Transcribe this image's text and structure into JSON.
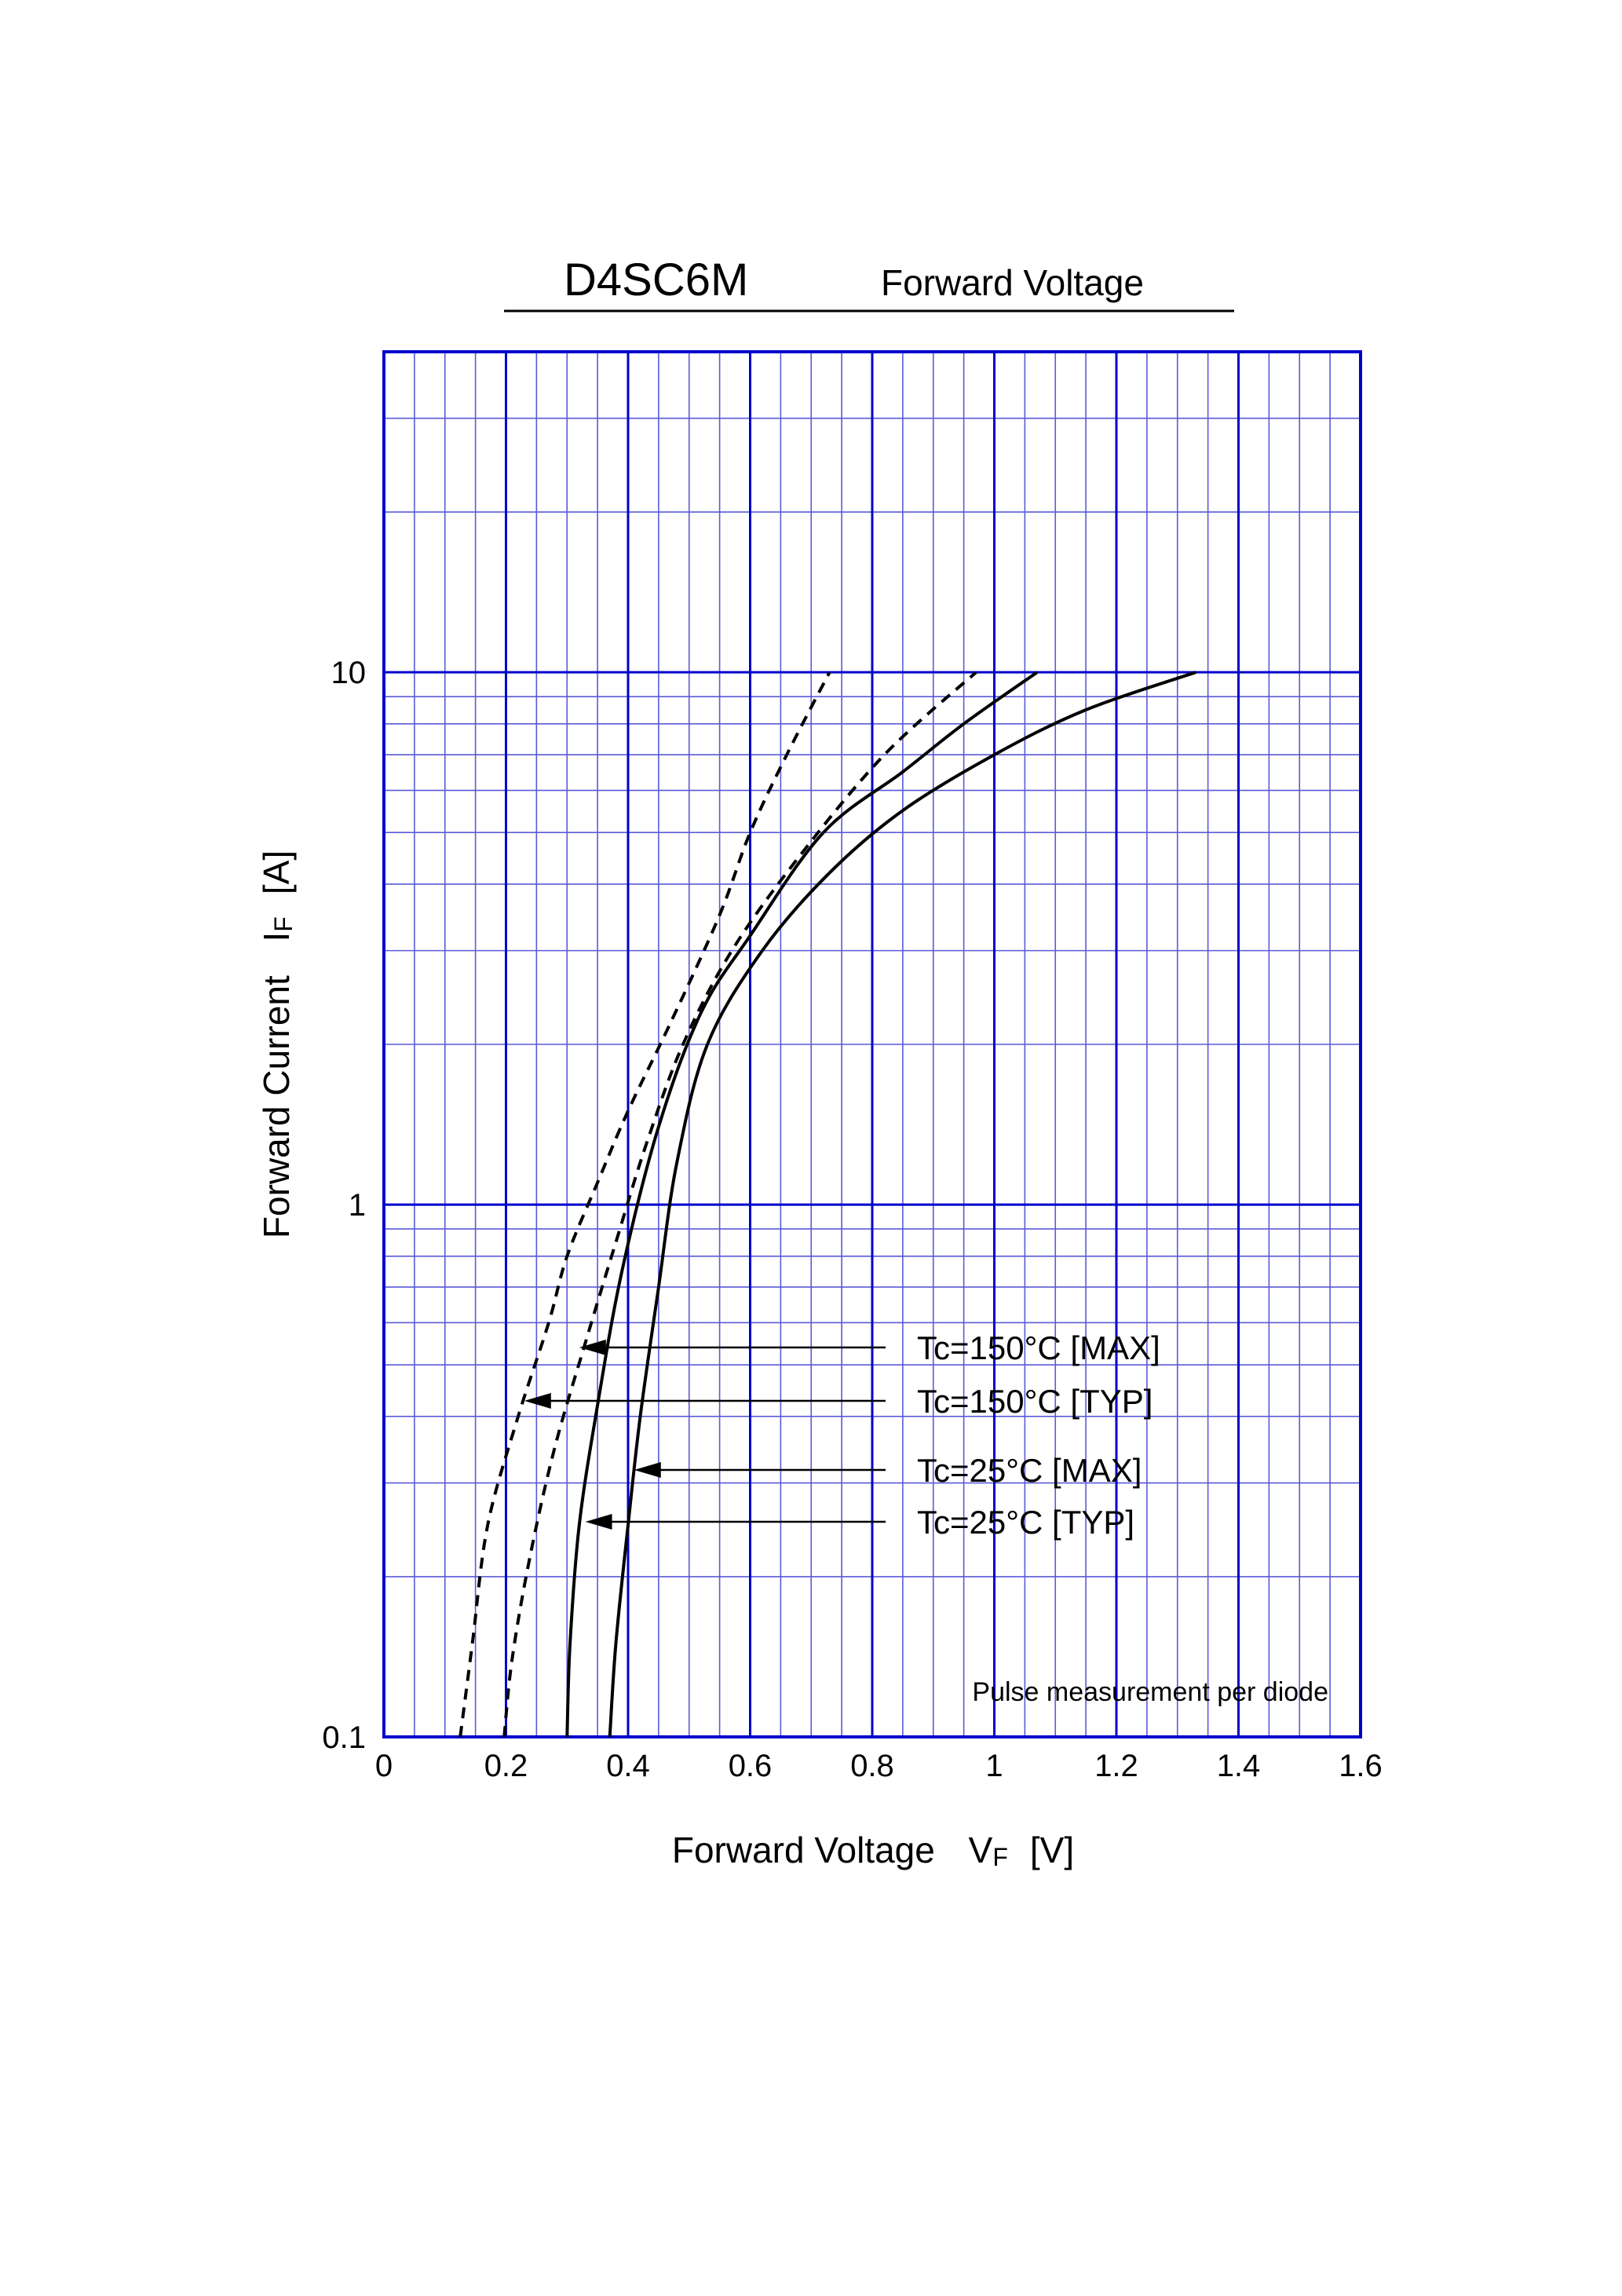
{
  "chart_data": {
    "type": "line",
    "title": "D4SC6M",
    "subtitle": "Forward Voltage",
    "xlabel": "Forward Voltage",
    "xlabel_symbol": "V",
    "xlabel_sub": "F",
    "xlabel_unit": "[V]",
    "ylabel": "Forward Current",
    "ylabel_symbol": "I",
    "ylabel_sub": "F",
    "ylabel_unit": "[A]",
    "xlim": [
      0,
      1.6
    ],
    "ylim": [
      0.1,
      40
    ],
    "yscale": "log",
    "grid": true,
    "x_ticks": [
      "0",
      "0.2",
      "0.4",
      "0.6",
      "0.8",
      "1",
      "1.2",
      "1.4",
      "1.6"
    ],
    "y_ticks": [
      {
        "value": 0.1,
        "label": "0.1"
      },
      {
        "value": 1,
        "label": "1"
      },
      {
        "value": 10,
        "label": "10"
      }
    ],
    "note": "Pulse measurement per diode",
    "series": [
      {
        "name": "Tc=150°C [MAX]",
        "style": "dashed",
        "points": [
          [
            0.125,
            0.1
          ],
          [
            0.145,
            0.15
          ],
          [
            0.17,
            0.25
          ],
          [
            0.22,
            0.4
          ],
          [
            0.27,
            0.6
          ],
          [
            0.3,
            0.8
          ],
          [
            0.35,
            1.1
          ],
          [
            0.4,
            1.5
          ],
          [
            0.47,
            2.2
          ],
          [
            0.55,
            3.5
          ],
          [
            0.6,
            5
          ],
          [
            0.66,
            7
          ],
          [
            0.73,
            10
          ]
        ],
        "label_arrow_at": [
          0.32,
          0.53
        ]
      },
      {
        "name": "Tc=150°C [TYP]",
        "style": "dashed",
        "points": [
          [
            0.197,
            0.1
          ],
          [
            0.21,
            0.14
          ],
          [
            0.24,
            0.22
          ],
          [
            0.28,
            0.35
          ],
          [
            0.33,
            0.55
          ],
          [
            0.38,
            0.85
          ],
          [
            0.43,
            1.3
          ],
          [
            0.49,
            2
          ],
          [
            0.57,
            3
          ],
          [
            0.68,
            4.5
          ],
          [
            0.82,
            7
          ],
          [
            0.97,
            10
          ]
        ],
        "label_arrow_at": [
          0.23,
          0.42
        ]
      },
      {
        "name": "Tc=25°C [MAX]",
        "style": "solid",
        "points": [
          [
            0.37,
            0.1
          ],
          [
            0.38,
            0.15
          ],
          [
            0.4,
            0.25
          ],
          [
            0.42,
            0.4
          ],
          [
            0.45,
            0.7
          ],
          [
            0.48,
            1.2
          ],
          [
            0.53,
            2
          ],
          [
            0.62,
            3
          ],
          [
            0.73,
            4.2
          ],
          [
            0.85,
            5.5
          ],
          [
            1,
            7
          ],
          [
            1.15,
            8.5
          ],
          [
            1.33,
            10
          ]
        ],
        "label_arrow_at": [
          0.41,
          0.31
        ]
      },
      {
        "name": "Tc=25°C [TYP]",
        "style": "solid",
        "points": [
          [
            0.3,
            0.1
          ],
          [
            0.305,
            0.15
          ],
          [
            0.32,
            0.25
          ],
          [
            0.35,
            0.42
          ],
          [
            0.39,
            0.75
          ],
          [
            0.45,
            1.4
          ],
          [
            0.52,
            2.3
          ],
          [
            0.6,
            3.2
          ],
          [
            0.72,
            5
          ],
          [
            0.85,
            6.5
          ],
          [
            0.95,
            8
          ],
          [
            1.07,
            10
          ]
        ],
        "label_arrow_at": [
          0.33,
          0.245
        ]
      }
    ]
  }
}
